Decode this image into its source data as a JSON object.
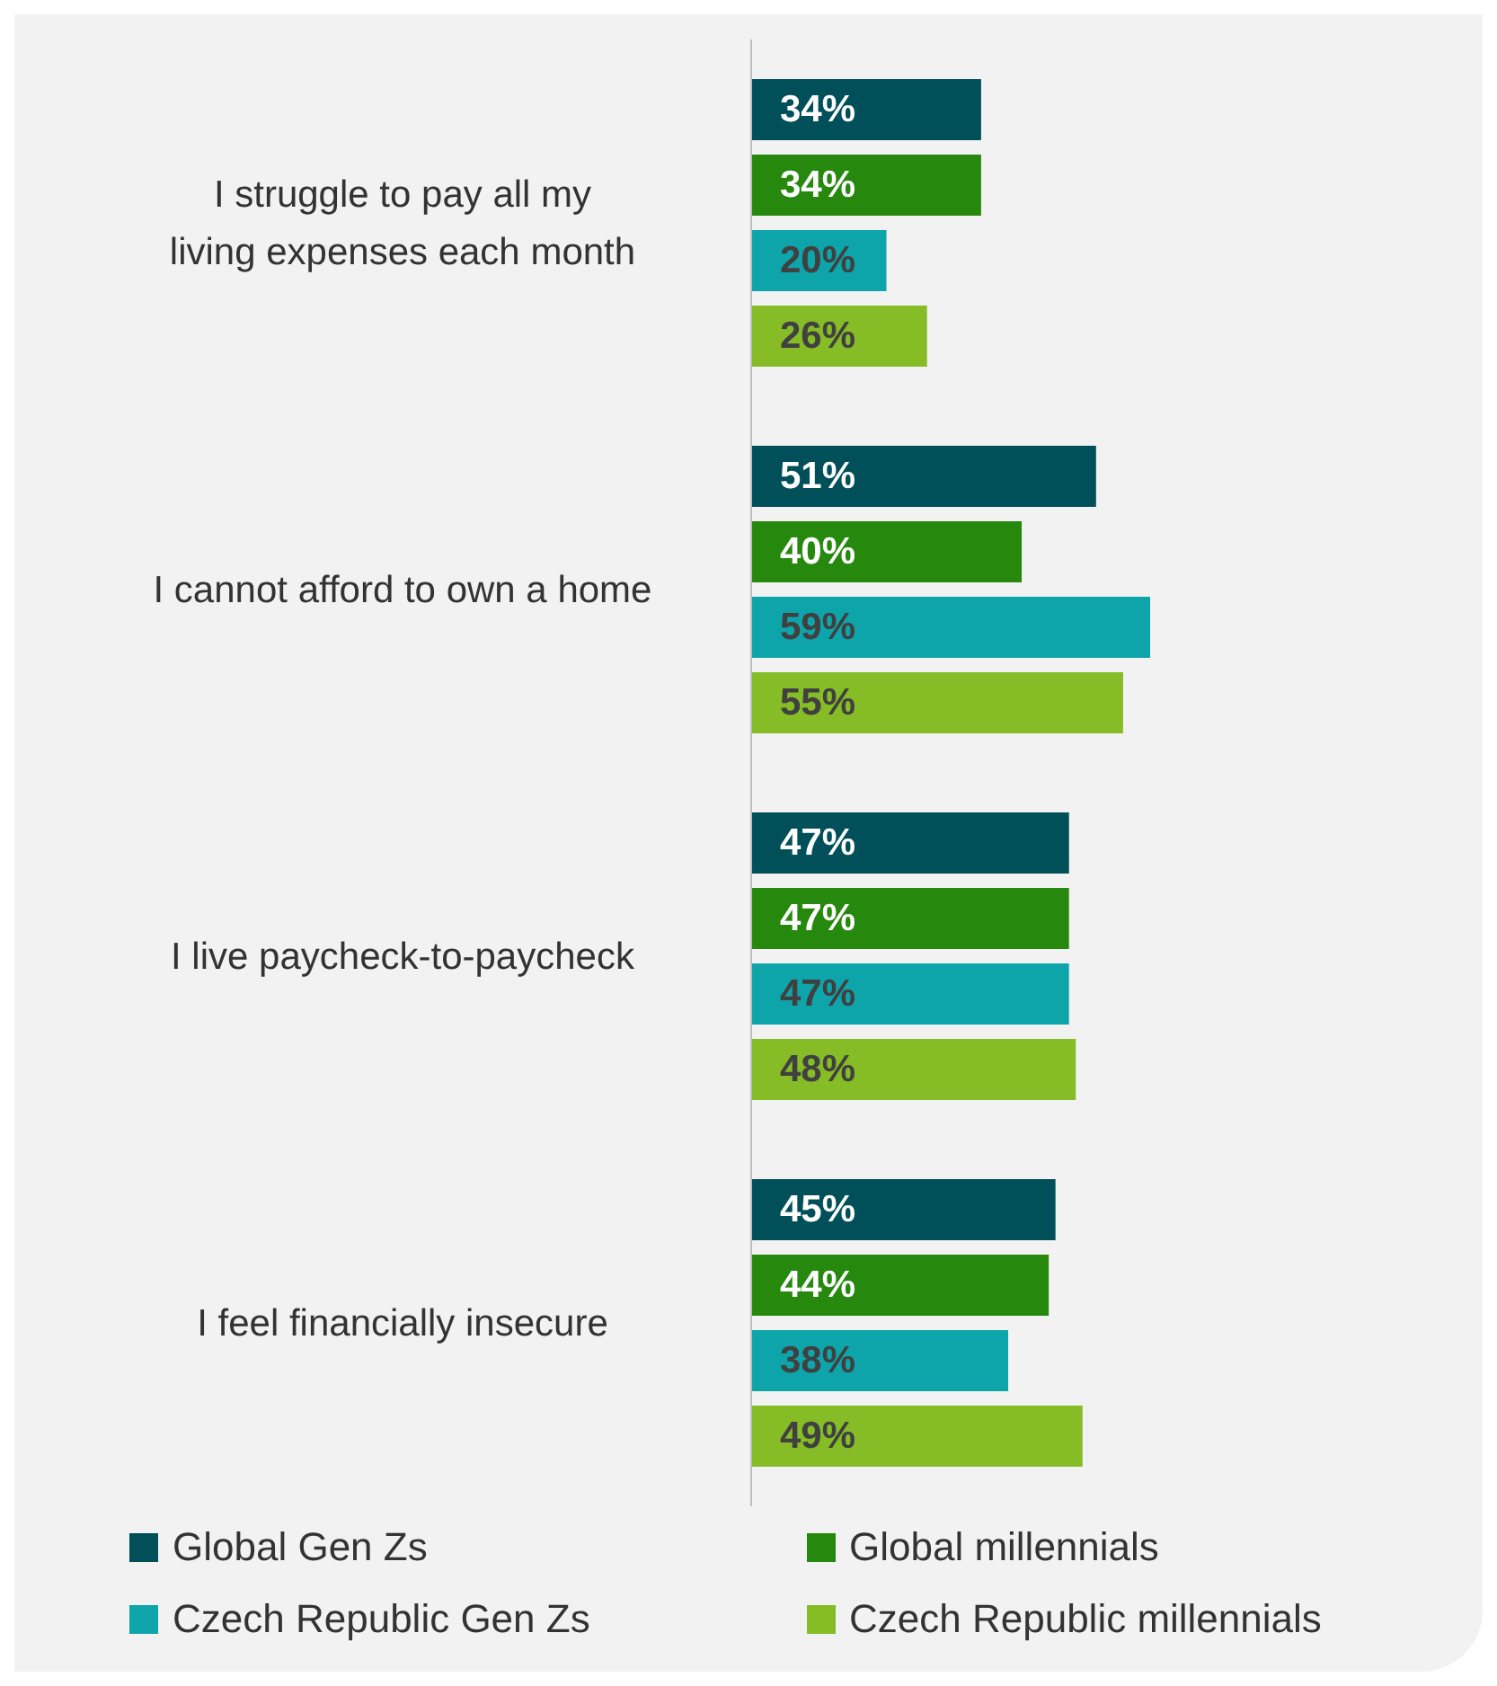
{
  "chart_data": {
    "type": "bar",
    "orientation": "horizontal",
    "legend": "bottom",
    "categories": [
      "I struggle to pay all my living expenses each month",
      "I cannot afford to own a home",
      "I live paycheck-to-paycheck",
      "I feel financially insecure"
    ],
    "series": [
      {
        "name": "Global Gen Zs",
        "color": "#004f59",
        "values": [
          34,
          51,
          47,
          45
        ],
        "value_labels": [
          "34%",
          "51%",
          "47%",
          "45%"
        ]
      },
      {
        "name": "Global millennials",
        "color": "#26890d",
        "values": [
          34,
          40,
          47,
          44
        ],
        "value_labels": [
          "34%",
          "40%",
          "47%",
          "44%"
        ]
      },
      {
        "name": "Czech Republic Gen Zs",
        "color": "#0da5aa",
        "values": [
          20,
          59,
          47,
          38
        ],
        "value_labels": [
          "20%",
          "59%",
          "47%",
          "38%"
        ]
      },
      {
        "name": "Czech Republic millennials",
        "color": "#86bc25",
        "values": [
          26,
          55,
          48,
          49
        ],
        "value_labels": [
          "26%",
          "55%",
          "48%",
          "49%"
        ]
      }
    ]
  }
}
